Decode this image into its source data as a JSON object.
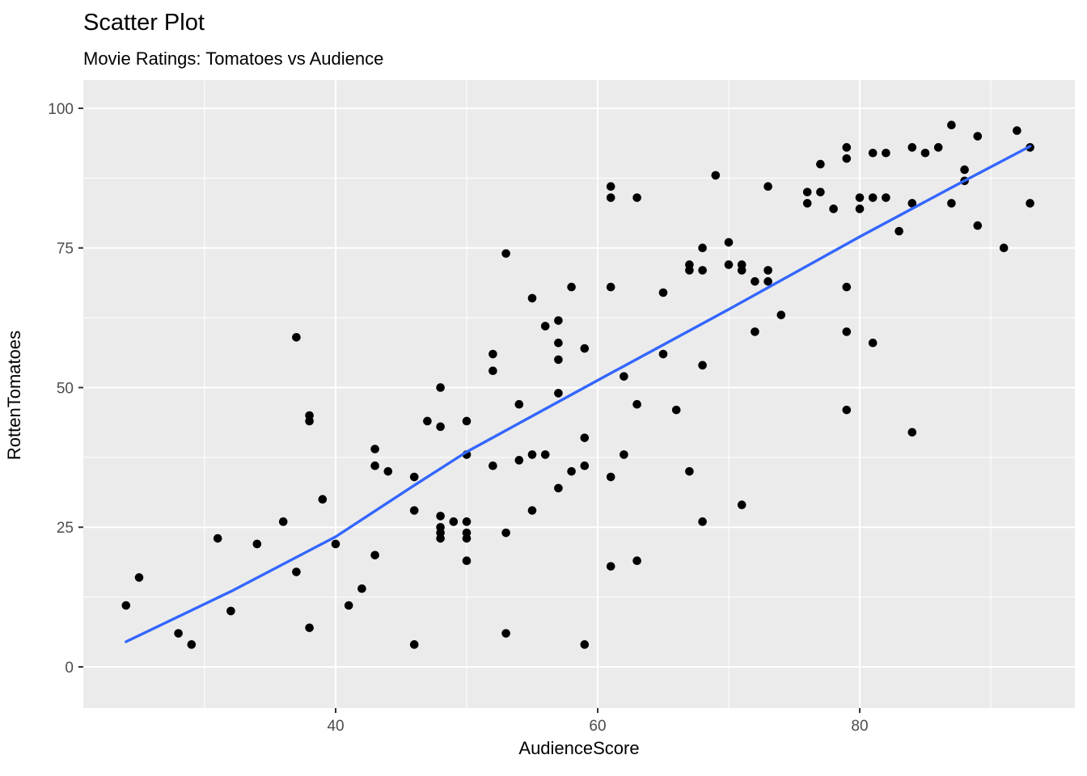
{
  "chart_data": {
    "type": "scatter",
    "title": "Scatter Plot",
    "subtitle": "Movie Ratings: Tomatoes vs Audience",
    "xlabel": "AudienceScore",
    "ylabel": "RottenTomatoes",
    "x_ticks": [
      40,
      60,
      80
    ],
    "y_ticks": [
      0,
      25,
      50,
      75,
      100
    ],
    "x_minor_gridlines": [
      30,
      50,
      70,
      90
    ],
    "y_minor_gridlines": [
      12.5,
      37.5,
      62.5,
      87.5
    ],
    "xlim": [
      20.74,
      96.42
    ],
    "ylim": [
      -7.38,
      105.06
    ],
    "grid": "on",
    "legend": "none",
    "panel_background": "#EBEBEB",
    "gridline_color": "#FFFFFF",
    "point_color": "#000000",
    "smooth_line_color": "#3366FF",
    "axis_text_color": "#4D4D4D",
    "tick_mark_color": "#333333",
    "points": [
      [
        87,
        97
      ],
      [
        92,
        96
      ],
      [
        89,
        95
      ],
      [
        79,
        93
      ],
      [
        84,
        93
      ],
      [
        86,
        93
      ],
      [
        93,
        93
      ],
      [
        81,
        92
      ],
      [
        82,
        92
      ],
      [
        85,
        92
      ],
      [
        79,
        91
      ],
      [
        77,
        90
      ],
      [
        88,
        89
      ],
      [
        69,
        88
      ],
      [
        88,
        87
      ],
      [
        73,
        86
      ],
      [
        61,
        86
      ],
      [
        76,
        85
      ],
      [
        77,
        85
      ],
      [
        61,
        84
      ],
      [
        63,
        84
      ],
      [
        80,
        84
      ],
      [
        81,
        84
      ],
      [
        82,
        84
      ],
      [
        76,
        83
      ],
      [
        84,
        83
      ],
      [
        87,
        83
      ],
      [
        93,
        83
      ],
      [
        78,
        82
      ],
      [
        80,
        82
      ],
      [
        89,
        79
      ],
      [
        83,
        78
      ],
      [
        91,
        75
      ],
      [
        68,
        75
      ],
      [
        70,
        76
      ],
      [
        53,
        74
      ],
      [
        67,
        72
      ],
      [
        70,
        72
      ],
      [
        71,
        72
      ],
      [
        67,
        71
      ],
      [
        68,
        71
      ],
      [
        71,
        71
      ],
      [
        73,
        71
      ],
      [
        72,
        69
      ],
      [
        73,
        69
      ],
      [
        58,
        68
      ],
      [
        61,
        68
      ],
      [
        79,
        68
      ],
      [
        65,
        67
      ],
      [
        55,
        66
      ],
      [
        74,
        63
      ],
      [
        57,
        62
      ],
      [
        56,
        61
      ],
      [
        72,
        60
      ],
      [
        79,
        60
      ],
      [
        37,
        59
      ],
      [
        57,
        58
      ],
      [
        81,
        58
      ],
      [
        59,
        57
      ],
      [
        52,
        56
      ],
      [
        65,
        56
      ],
      [
        57,
        55
      ],
      [
        68,
        54
      ],
      [
        52,
        53
      ],
      [
        48,
        50
      ],
      [
        57,
        49
      ],
      [
        62,
        52
      ],
      [
        54,
        47
      ],
      [
        63,
        47
      ],
      [
        79,
        46
      ],
      [
        66,
        46
      ],
      [
        38,
        45
      ],
      [
        38,
        44
      ],
      [
        47,
        44
      ],
      [
        50,
        44
      ],
      [
        48,
        43
      ],
      [
        84,
        42
      ],
      [
        59,
        41
      ],
      [
        43,
        39
      ],
      [
        50,
        38
      ],
      [
        55,
        38
      ],
      [
        56,
        38
      ],
      [
        62,
        38
      ],
      [
        54,
        37
      ],
      [
        43,
        36
      ],
      [
        52,
        36
      ],
      [
        59,
        36
      ],
      [
        44,
        35
      ],
      [
        58,
        35
      ],
      [
        67,
        35
      ],
      [
        46,
        34
      ],
      [
        61,
        34
      ],
      [
        57,
        32
      ],
      [
        39,
        30
      ],
      [
        46,
        28
      ],
      [
        55,
        28
      ],
      [
        71,
        29
      ],
      [
        48,
        27
      ],
      [
        36,
        26
      ],
      [
        49,
        26
      ],
      [
        50,
        26
      ],
      [
        68,
        26
      ],
      [
        48,
        25
      ],
      [
        48,
        24
      ],
      [
        50,
        24
      ],
      [
        53,
        24
      ],
      [
        31,
        23
      ],
      [
        48,
        23
      ],
      [
        50,
        23
      ],
      [
        34,
        22
      ],
      [
        40,
        22
      ],
      [
        43,
        20
      ],
      [
        50,
        19
      ],
      [
        63,
        19
      ],
      [
        61,
        18
      ],
      [
        37,
        17
      ],
      [
        25,
        16
      ],
      [
        42,
        14
      ],
      [
        24,
        11
      ],
      [
        41,
        11
      ],
      [
        32,
        10
      ],
      [
        38,
        7
      ],
      [
        28,
        6
      ],
      [
        53,
        6
      ],
      [
        29,
        4
      ],
      [
        46,
        4
      ],
      [
        59,
        4
      ]
    ],
    "smooth_line": [
      [
        24,
        4.5
      ],
      [
        32,
        13.5
      ],
      [
        40,
        23.3
      ],
      [
        46,
        32.5
      ],
      [
        50,
        38.5
      ],
      [
        60,
        51.3
      ],
      [
        70,
        64.0
      ],
      [
        80,
        77.0
      ],
      [
        87,
        85.8
      ],
      [
        93,
        93.2
      ]
    ]
  }
}
